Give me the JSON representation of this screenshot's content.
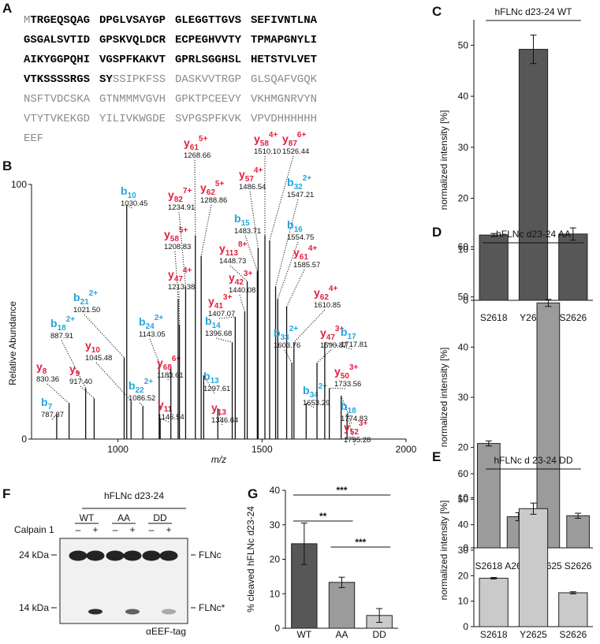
{
  "panel_labels": [
    "A",
    "B",
    "C",
    "D",
    "E",
    "F",
    "G"
  ],
  "sequence": {
    "rows": [
      [
        [
          {
            "text": "M",
            "covered": false
          },
          {
            "text": "TRGEQSQAG",
            "covered": true
          }
        ],
        [
          {
            "text": "DPGLVSAYGP",
            "covered": true
          }
        ],
        [
          {
            "text": "GLEGGTTGVS",
            "covered": true
          }
        ],
        [
          {
            "text": "SEFIVNTLNA",
            "covered": true
          }
        ]
      ],
      [
        [
          {
            "text": "GSGALSVTID",
            "covered": true
          }
        ],
        [
          {
            "text": "GPSKVQLDCR",
            "covered": true
          }
        ],
        [
          {
            "text": "ECPEGHVVTY",
            "covered": true
          }
        ],
        [
          {
            "text": "TPMAPGNYLI",
            "covered": true
          }
        ]
      ],
      [
        [
          {
            "text": "AIKYGGPQHI",
            "covered": true
          }
        ],
        [
          {
            "text": "VGSPFKAKVT",
            "covered": true
          }
        ],
        [
          {
            "text": "GPRLSGGHSL",
            "covered": true
          }
        ],
        [
          {
            "text": "HETSTVLVET",
            "covered": true
          }
        ]
      ],
      [
        [
          {
            "text": "VTKSSSSRGS",
            "covered": true
          }
        ],
        [
          {
            "text": "SY",
            "covered": true
          },
          {
            "text": "SSIPKFSS",
            "covered": false
          }
        ],
        [
          {
            "text": "DASKVVTRGP",
            "covered": false
          }
        ],
        [
          {
            "text": "GLSQAFVGQK",
            "covered": false
          }
        ]
      ],
      [
        [
          {
            "text": "NSFTVDCSKA",
            "covered": false
          }
        ],
        [
          {
            "text": "GTNMMMVGVH",
            "covered": false
          }
        ],
        [
          {
            "text": "GPKTPCEEVY",
            "covered": false
          }
        ],
        [
          {
            "text": "VKHMGNRVYN",
            "covered": false
          }
        ]
      ],
      [
        [
          {
            "text": "VTYTVKEKGD",
            "covered": false
          }
        ],
        [
          {
            "text": "YILIVKWGDE",
            "covered": false
          }
        ],
        [
          {
            "text": "SVPGSPFKVK",
            "covered": false
          }
        ],
        [
          {
            "text": "VPVDHHHHHH",
            "covered": false
          }
        ]
      ],
      [
        [
          {
            "text": "EEF",
            "covered": false
          }
        ]
      ]
    ]
  },
  "chart_data": [
    {
      "type": "spectrum",
      "xlabel": "m/z",
      "ylabel": "Relative Abundance",
      "xlim": [
        700,
        2000
      ],
      "ylim": [
        0,
        100
      ],
      "xticks": [
        1000,
        1500,
        2000
      ],
      "yticks": [
        0,
        100
      ],
      "ion_colors": {
        "b": "#27a4dd",
        "y": "#e3203f"
      },
      "peaks": [
        {
          "ion": "b",
          "index": "7",
          "mz": 787.37,
          "abundance": 10
        },
        {
          "ion": "y",
          "index": "8",
          "mz": 830.36,
          "abundance": 14
        },
        {
          "ion": "b",
          "index": "18",
          "charge": "2+",
          "mz": 887.91,
          "abundance": 20
        },
        {
          "ion": "y",
          "index": "9",
          "mz": {
            "value": 917.4,
            "label": "917.40"
          },
          "abundance": 16
        },
        {
          "ion": "b",
          "index": "21",
          "charge": "2+",
          "mz": {
            "value": 1021.5,
            "label": "1021.50"
          },
          "abundance": 32
        },
        {
          "ion": "b",
          "index": "10",
          "mz": 1030.45,
          "abundance": 92
        },
        {
          "ion": "y",
          "index": "10",
          "mz": 1045.48,
          "abundance": 15
        },
        {
          "ion": "b",
          "index": "22",
          "charge": "2+",
          "mz": 1086.52,
          "abundance": 13
        },
        {
          "ion": "b",
          "index": "24",
          "charge": "2+",
          "mz": 1143.05,
          "abundance": 30
        },
        {
          "ion": "y",
          "index": "11",
          "mz": 1146.54,
          "abundance": 8
        },
        {
          "ion": "y",
          "index": "68",
          "charge": "6+",
          "mz": 1183.61,
          "abundance": 28
        },
        {
          "ion": "y",
          "index": "58",
          "charge": "5+",
          "mz": 1208.83,
          "abundance": 55
        },
        {
          "ion": "y",
          "index": "47",
          "charge": "4+",
          "mz": 1213.38,
          "abundance": 45
        },
        {
          "ion": "y",
          "index": "82",
          "charge": "7+",
          "mz": 1234.91,
          "abundance": 60
        },
        {
          "ion": "y",
          "index": "61",
          "charge": "5+",
          "mz": 1268.66,
          "abundance": 80
        },
        {
          "ion": "y",
          "index": "62",
          "charge": "5+",
          "mz": 1288.86,
          "abundance": 72
        },
        {
          "ion": "b",
          "index": "13",
          "mz": 1297.61,
          "abundance": 25
        },
        {
          "ion": "y",
          "index": "13",
          "mz": 1346.64,
          "abundance": 12
        },
        {
          "ion": "b",
          "index": "14",
          "mz": 1396.68,
          "abundance": 38
        },
        {
          "ion": "y",
          "index": "41",
          "charge": "3+",
          "mz": 1407.07,
          "abundance": 48
        },
        {
          "ion": "y",
          "index": "42",
          "charge": "3+",
          "mz": 1440.08,
          "abundance": 50
        },
        {
          "ion": "y",
          "index": "113",
          "charge": "8+",
          "mz": 1448.73,
          "abundance": 62
        },
        {
          "ion": "b",
          "index": "15",
          "mz": 1483.71,
          "abundance": 66
        },
        {
          "ion": "y",
          "index": "57",
          "charge": "4+",
          "mz": 1486.54,
          "abundance": 75
        },
        {
          "ion": "y",
          "index": "58",
          "charge": "4+",
          "mz": {
            "value": 1510.1,
            "label": "1510.10"
          },
          "abundance": 80
        },
        {
          "ion": "y",
          "index": "87",
          "charge": "6+",
          "mz": 1526.44,
          "abundance": 78
        },
        {
          "ion": "b",
          "index": "32",
          "charge": "2+",
          "mz": 1547.21,
          "abundance": 60
        },
        {
          "ion": "b",
          "index": "16",
          "mz": 1554.75,
          "abundance": 55
        },
        {
          "ion": "y",
          "index": "61",
          "charge": "4+",
          "mz": 1585.57,
          "abundance": 52
        },
        {
          "ion": "b",
          "index": "33",
          "charge": "2+",
          "mz": 1603.76,
          "abundance": 30
        },
        {
          "ion": "y",
          "index": "62",
          "charge": "4+",
          "mz": 1610.85,
          "abundance": 38
        },
        {
          "ion": "b",
          "index": "34",
          "charge": "2+",
          "mz": 1653.29,
          "abundance": 14
        },
        {
          "ion": "y",
          "index": "47",
          "charge": "3+",
          "mz": 1690.87,
          "abundance": 30
        },
        {
          "ion": "b",
          "index": "17",
          "mz": 1717.81,
          "abundance": 38
        },
        {
          "ion": "y",
          "index": "50",
          "charge": "3+",
          "mz": 1733.56,
          "abundance": 20
        },
        {
          "ion": "b",
          "index": "18",
          "mz": 1774.83,
          "abundance": 17
        },
        {
          "ion": "y",
          "index": "52",
          "charge": "3+",
          "mz": 1795.28,
          "abundance": 10
        }
      ]
    },
    {
      "type": "bar",
      "title": "hFLNc d23-24 WT",
      "ylabel": "normalized intensity [%]",
      "categories": [
        "S2618",
        "Y2625",
        "S2626"
      ],
      "values": [
        12.8,
        49.2,
        13.0
      ],
      "errors": [
        0.3,
        2.8,
        1.2
      ],
      "color": "#575757",
      "ylim": [
        0,
        55
      ],
      "yticks": [
        0,
        10,
        20,
        30,
        40,
        50
      ]
    },
    {
      "type": "bar",
      "title": "hFLNc d23-24 AA",
      "ylabel": "normalized intensity [%]",
      "categories": [
        "S2618",
        "A2623",
        "Y2625",
        "S2626"
      ],
      "values": [
        20.8,
        6.2,
        48.8,
        6.4
      ],
      "errors": [
        0.5,
        0.8,
        0.7,
        0.5
      ],
      "color": "#9b9b9b",
      "ylim": [
        0,
        60
      ],
      "yticks": [
        0,
        10,
        20,
        30,
        40,
        50,
        60
      ]
    },
    {
      "type": "bar",
      "title": "hFLNc d 23-24 DD",
      "ylabel": "normalized intensity [%]",
      "categories": [
        "S2618",
        "Y2625",
        "S2626"
      ],
      "values": [
        19.0,
        46.3,
        13.3
      ],
      "errors": [
        0.3,
        2.2,
        0.4
      ],
      "color": "#cacaca",
      "ylim": [
        0,
        60
      ],
      "yticks": [
        0,
        10,
        20,
        30,
        40,
        50,
        60
      ]
    },
    {
      "type": "bar",
      "ylabel": "% cleaved hFLNc d23-24",
      "categories": [
        "WT",
        "AA",
        "DD"
      ],
      "values": [
        24.5,
        13.3,
        3.7
      ],
      "errors": [
        6.0,
        1.5,
        2.0
      ],
      "colors": [
        "#575757",
        "#9b9b9b",
        "#cacaca"
      ],
      "ylim": [
        0,
        40
      ],
      "yticks": [
        0,
        10,
        20,
        30,
        40
      ],
      "significance": [
        "***",
        "**",
        "***"
      ]
    }
  ],
  "blot": {
    "title": "hFLNc d23-24",
    "groups": [
      "WT",
      "AA",
      "DD"
    ],
    "treatment": "Calpain 1",
    "lanes": [
      "–",
      "+",
      "–",
      "+",
      "–",
      "+"
    ],
    "markers": [
      "24 kDa",
      "14 kDa"
    ],
    "bands": [
      "FLNc",
      "FLNc*"
    ],
    "antibody": "αEEF-tag"
  }
}
